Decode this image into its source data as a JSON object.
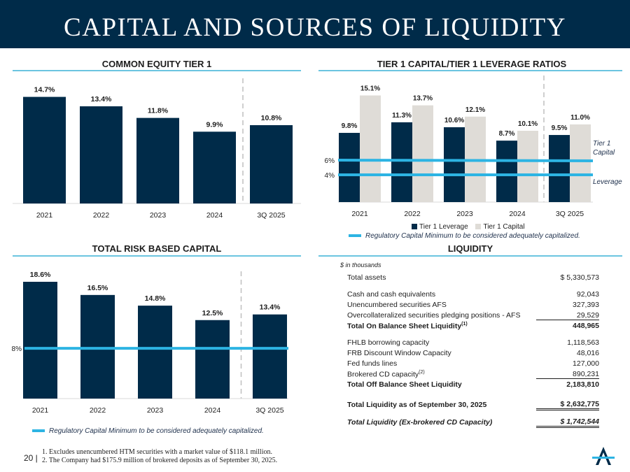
{
  "title": "CAPITAL AND SOURCES OF LIQUIDITY",
  "colors": {
    "navy": "#002b49",
    "gray": "#dfdcd7",
    "accent": "#2db4e3"
  },
  "chart_data": [
    {
      "id": "cet1",
      "type": "bar",
      "title": "COMMON EQUITY TIER 1",
      "categories": [
        "2021",
        "2022",
        "2023",
        "2024",
        "3Q 2025"
      ],
      "values": [
        14.7,
        13.4,
        11.8,
        9.9,
        10.8
      ],
      "labels": [
        "14.7%",
        "13.4%",
        "11.8%",
        "9.9%",
        "10.8%"
      ],
      "ylim": [
        0,
        16.2
      ]
    },
    {
      "id": "tier1",
      "type": "bar",
      "title": "TIER 1 CAPITAL/TIER 1 LEVERAGE RATIOS",
      "categories": [
        "2021",
        "2022",
        "2023",
        "2024",
        "3Q 2025"
      ],
      "series": [
        {
          "name": "Tier 1 Leverage",
          "values": [
            9.8,
            11.3,
            10.6,
            8.7,
            9.5
          ],
          "labels": [
            "9.8%",
            "11.3%",
            "10.6%",
            "8.7%",
            "9.5%"
          ]
        },
        {
          "name": "Tier 1 Capital",
          "values": [
            15.1,
            13.7,
            12.1,
            10.1,
            11.0
          ],
          "labels": [
            "15.1%",
            "13.7%",
            "12.1%",
            "10.1%",
            "11.0%"
          ]
        }
      ],
      "reference_lines": [
        {
          "value": 6,
          "tick_label": "6%",
          "end_label": "Tier 1 Capital"
        },
        {
          "value": 4,
          "tick_label": "4%",
          "end_label": "Leverage"
        }
      ],
      "legend": {
        "items": [
          "Tier 1 Leverage",
          "Tier 1 Capital"
        ],
        "placement": "bottom"
      },
      "reg_note": "Regulatory Capital Minimum to be considered adequately capitalized.",
      "ylim": [
        0,
        16.5
      ]
    },
    {
      "id": "trbc",
      "type": "bar",
      "title": "TOTAL RISK BASED CAPITAL",
      "categories": [
        "2021",
        "2022",
        "2023",
        "2024",
        "3Q 2025"
      ],
      "values": [
        18.6,
        16.5,
        14.8,
        12.5,
        13.4
      ],
      "labels": [
        "18.6%",
        "16.5%",
        "14.8%",
        "12.5%",
        "13.4%"
      ],
      "reference_lines": [
        {
          "value": 8,
          "tick_label": "8%"
        }
      ],
      "reg_note": "Regulatory Capital Minimum to be considered adequately capitalized.",
      "ylim": [
        0,
        19.6
      ]
    }
  ],
  "liquidity": {
    "title": "LIQUIDITY",
    "unit_note": "$ in thousands",
    "total_assets": {
      "label": "Total assets",
      "value": "$  5,330,573"
    },
    "on_balance": [
      {
        "label": "Cash and cash equivalents",
        "value": "92,043"
      },
      {
        "label": "Unencumbered securities AFS",
        "value": "327,393"
      },
      {
        "label": "Overcollateralized securities pledging positions - AFS",
        "value": "29,529"
      }
    ],
    "on_total": {
      "label": "Total On Balance Sheet Liquidity",
      "sup": "(1)",
      "value": "448,965"
    },
    "off_balance": [
      {
        "label": "FHLB borrowing capacity",
        "value": "1,118,563"
      },
      {
        "label": "FRB Discount Window Capacity",
        "value": "48,016"
      },
      {
        "label": "Fed funds lines",
        "value": "127,000"
      },
      {
        "label": "Brokered CD capacity",
        "sup": "(2)",
        "value": "890,231"
      }
    ],
    "off_total": {
      "label": "Total Off Balance Sheet Liquidity",
      "value": "2,183,810"
    },
    "grand_total": {
      "label": "Total Liquidity as of September 30, 2025",
      "value": "$  2,632,775"
    },
    "ex_brokered": {
      "label": "Total Liquidity (Ex-brokered CD Capacity)",
      "value": "$  1,742,544"
    }
  },
  "footer": {
    "page": "20 |",
    "notes": [
      "1. Excludes unencumbered HTM securities with a market value of $118.1 million.",
      "2. The Company had $175.9 million of brokered deposits as of September 30, 2025."
    ]
  }
}
